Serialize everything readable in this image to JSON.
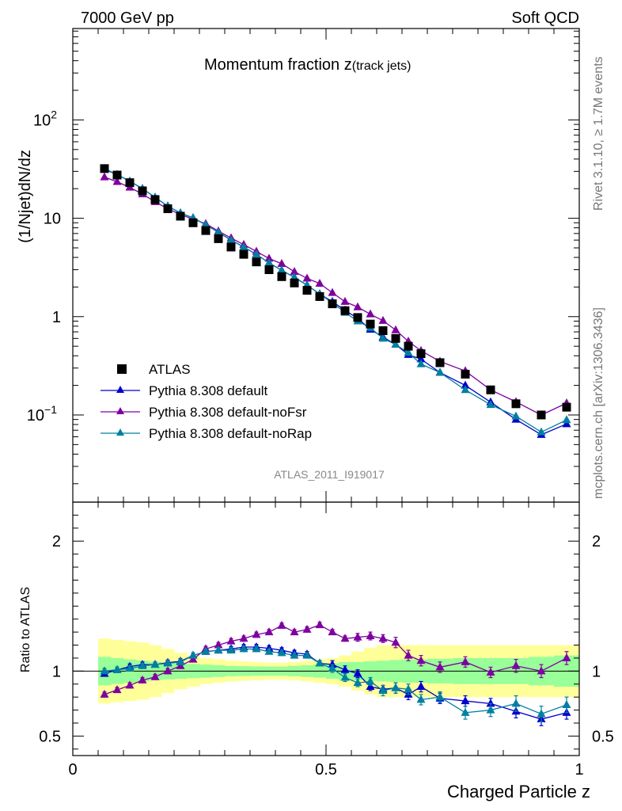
{
  "header": {
    "left": "7000 GeV pp",
    "right": "Soft QCD"
  },
  "side_labels": {
    "upper": "Rivet 3.1.10, ≥ 1.7M events",
    "lower": "mcplots.cern.ch [arXiv:1306.3436]"
  },
  "chart_data": {
    "type": "scatter",
    "title_main": "Momentum fraction z",
    "title_sub": "(track jets)",
    "ylabel": "(1/Njet)dN/dz",
    "xlabel": "Charged Particle z",
    "ratio_ylabel": "Ratio to ATLAS",
    "analysis_id": "ATLAS_2011_I919017",
    "xlim": [
      0,
      1
    ],
    "ylim": [
      0.013,
      850
    ],
    "yscale": "log",
    "ratio_ylim": [
      0.35,
      2.3
    ],
    "x_ticks": [
      "0",
      "0.5",
      "1"
    ],
    "y_ticks": [
      {
        "value": 0.1,
        "base": "10",
        "exp": "−1"
      },
      {
        "value": 1,
        "base": "1",
        "exp": ""
      },
      {
        "value": 10,
        "base": "10",
        "exp": ""
      },
      {
        "value": 100,
        "base": "10",
        "exp": "2"
      }
    ],
    "ratio_ticks": [
      "0.5",
      "1",
      "2"
    ],
    "legend_position": "lower-left",
    "x": [
      0.0625,
      0.0875,
      0.1125,
      0.1375,
      0.1625,
      0.1875,
      0.2125,
      0.2375,
      0.2625,
      0.2875,
      0.3125,
      0.3375,
      0.3625,
      0.3875,
      0.4125,
      0.4375,
      0.4625,
      0.4875,
      0.5125,
      0.5375,
      0.5625,
      0.5875,
      0.6125,
      0.6375,
      0.6625,
      0.6875,
      0.725,
      0.775,
      0.825,
      0.875,
      0.925,
      0.975
    ],
    "bin_edges": [
      0.05,
      0.075,
      0.1,
      0.125,
      0.15,
      0.175,
      0.2,
      0.225,
      0.25,
      0.275,
      0.3,
      0.325,
      0.35,
      0.375,
      0.4,
      0.425,
      0.45,
      0.475,
      0.5,
      0.525,
      0.55,
      0.575,
      0.6,
      0.625,
      0.65,
      0.675,
      0.7,
      0.75,
      0.8,
      0.85,
      0.9,
      0.95,
      1.0
    ],
    "data": {
      "name": "ATLAS",
      "color": "#000000",
      "values": [
        32,
        27.5,
        23,
        19,
        15.5,
        12.5,
        10.5,
        9.0,
        7.5,
        6.2,
        5.1,
        4.3,
        3.6,
        3.0,
        2.55,
        2.2,
        1.85,
        1.6,
        1.35,
        1.15,
        0.98,
        0.84,
        0.72,
        0.6,
        0.5,
        0.42,
        0.34,
        0.26,
        0.18,
        0.13,
        0.1,
        0.12
      ],
      "band_inner": [
        0.11,
        0.1,
        0.09,
        0.08,
        0.07,
        0.065,
        0.06,
        0.055,
        0.05,
        0.045,
        0.04,
        0.038,
        0.036,
        0.035,
        0.035,
        0.04,
        0.045,
        0.05,
        0.06,
        0.07,
        0.07,
        0.075,
        0.08,
        0.085,
        0.09,
        0.09,
        0.095,
        0.1,
        0.1,
        0.1,
        0.11,
        0.12
      ],
      "band_outer": [
        0.25,
        0.24,
        0.23,
        0.22,
        0.2,
        0.17,
        0.14,
        0.12,
        0.1,
        0.09,
        0.08,
        0.075,
        0.07,
        0.065,
        0.065,
        0.07,
        0.08,
        0.09,
        0.1,
        0.12,
        0.15,
        0.18,
        0.2,
        0.2,
        0.2,
        0.2,
        0.2,
        0.2,
        0.2,
        0.2,
        0.2,
        0.2
      ]
    },
    "series": [
      {
        "name": "Pythia 8.308 default",
        "color": "#0000cc",
        "values": [
          31.4,
          27.8,
          23.8,
          20.0,
          16.3,
          13.3,
          11.3,
          10.1,
          8.6,
          7.2,
          6.0,
          5.1,
          4.3,
          3.52,
          2.96,
          2.51,
          2.09,
          1.7,
          1.42,
          1.16,
          0.96,
          0.74,
          0.62,
          0.52,
          0.41,
          0.37,
          0.27,
          0.2,
          0.135,
          0.09,
          0.063,
          0.081
        ],
        "ratio": [
          0.98,
          1.01,
          1.035,
          1.05,
          1.05,
          1.065,
          1.075,
          1.12,
          1.15,
          1.16,
          1.17,
          1.185,
          1.185,
          1.175,
          1.16,
          1.14,
          1.13,
          1.06,
          1.05,
          1.01,
          0.98,
          0.88,
          0.86,
          0.87,
          0.82,
          0.88,
          0.79,
          0.77,
          0.75,
          0.69,
          0.63,
          0.68
        ],
        "ratio_err": [
          0.02,
          0.02,
          0.02,
          0.02,
          0.02,
          0.02,
          0.02,
          0.02,
          0.02,
          0.02,
          0.02,
          0.02,
          0.02,
          0.02,
          0.02,
          0.02,
          0.02,
          0.02,
          0.03,
          0.03,
          0.03,
          0.03,
          0.03,
          0.04,
          0.04,
          0.04,
          0.04,
          0.04,
          0.04,
          0.05,
          0.05,
          0.05
        ]
      },
      {
        "name": "Pythia 8.308 default-noFsr",
        "color": "#7f00a0",
        "values": [
          26.2,
          23.5,
          20.6,
          17.6,
          14.7,
          12.5,
          10.9,
          9.8,
          8.8,
          7.4,
          6.3,
          5.4,
          4.6,
          3.9,
          3.45,
          2.86,
          2.45,
          2.17,
          1.75,
          1.42,
          1.25,
          1.06,
          0.91,
          0.73,
          0.56,
          0.45,
          0.35,
          0.28,
          0.18,
          0.136,
          0.1,
          0.132
        ],
        "ratio": [
          0.82,
          0.855,
          0.89,
          0.93,
          0.955,
          1.0,
          1.04,
          1.09,
          1.17,
          1.2,
          1.23,
          1.25,
          1.28,
          1.3,
          1.35,
          1.3,
          1.32,
          1.355,
          1.3,
          1.25,
          1.26,
          1.27,
          1.25,
          1.22,
          1.12,
          1.08,
          1.03,
          1.07,
          0.99,
          1.04,
          1.0,
          1.1
        ],
        "ratio_err": [
          0.02,
          0.02,
          0.02,
          0.02,
          0.02,
          0.02,
          0.02,
          0.02,
          0.02,
          0.02,
          0.02,
          0.02,
          0.02,
          0.02,
          0.02,
          0.02,
          0.02,
          0.02,
          0.02,
          0.02,
          0.03,
          0.03,
          0.03,
          0.04,
          0.04,
          0.04,
          0.04,
          0.04,
          0.04,
          0.05,
          0.05,
          0.05
        ]
      },
      {
        "name": "Pythia 8.308 default-noRap",
        "color": "#0080a0",
        "values": [
          32.0,
          27.8,
          23.8,
          20.0,
          16.3,
          13.3,
          11.3,
          10.1,
          8.6,
          7.2,
          6.0,
          5.1,
          4.3,
          3.52,
          2.96,
          2.51,
          2.09,
          1.7,
          1.38,
          1.1,
          0.9,
          0.77,
          0.6,
          0.52,
          0.43,
          0.33,
          0.27,
          0.18,
          0.127,
          0.097,
          0.067,
          0.089
        ],
        "ratio": [
          1.0,
          1.01,
          1.02,
          1.04,
          1.05,
          1.06,
          1.07,
          1.12,
          1.15,
          1.16,
          1.16,
          1.17,
          1.17,
          1.15,
          1.14,
          1.12,
          1.12,
          1.06,
          1.02,
          0.95,
          0.91,
          0.92,
          0.85,
          0.87,
          0.86,
          0.78,
          0.8,
          0.68,
          0.7,
          0.75,
          0.67,
          0.74
        ],
        "ratio_err": [
          0.02,
          0.02,
          0.02,
          0.02,
          0.02,
          0.02,
          0.02,
          0.02,
          0.02,
          0.02,
          0.02,
          0.02,
          0.02,
          0.02,
          0.02,
          0.02,
          0.02,
          0.02,
          0.03,
          0.03,
          0.03,
          0.03,
          0.04,
          0.04,
          0.04,
          0.04,
          0.04,
          0.05,
          0.05,
          0.06,
          0.06,
          0.06
        ]
      }
    ]
  }
}
